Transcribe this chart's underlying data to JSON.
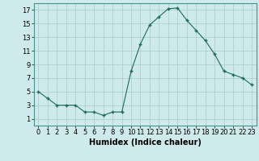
{
  "x": [
    0,
    1,
    2,
    3,
    4,
    5,
    6,
    7,
    8,
    9,
    10,
    11,
    12,
    13,
    14,
    15,
    16,
    17,
    18,
    19,
    20,
    21,
    22,
    23
  ],
  "y": [
    5,
    4,
    3,
    3,
    3,
    2,
    2,
    1.5,
    2,
    2,
    8,
    12,
    14.8,
    16,
    17.2,
    17.3,
    15.5,
    14,
    12.5,
    10.5,
    8,
    7.5,
    7,
    6
  ],
  "line_color": "#1a6b5a",
  "marker": "+",
  "marker_size": 3,
  "marker_linewidth": 1.0,
  "bg_color": "#ceeaea",
  "grid_color": "#b0d0d0",
  "xlabel": "Humidex (Indice chaleur)",
  "xlabel_fontsize": 7,
  "ylim": [
    0,
    18
  ],
  "xlim": [
    -0.5,
    23.5
  ],
  "yticks": [
    1,
    3,
    5,
    7,
    9,
    11,
    13,
    15,
    17
  ],
  "xticks": [
    0,
    1,
    2,
    3,
    4,
    5,
    6,
    7,
    8,
    9,
    10,
    11,
    12,
    13,
    14,
    15,
    16,
    17,
    18,
    19,
    20,
    21,
    22,
    23
  ],
  "tick_fontsize": 6,
  "line_width": 0.8
}
